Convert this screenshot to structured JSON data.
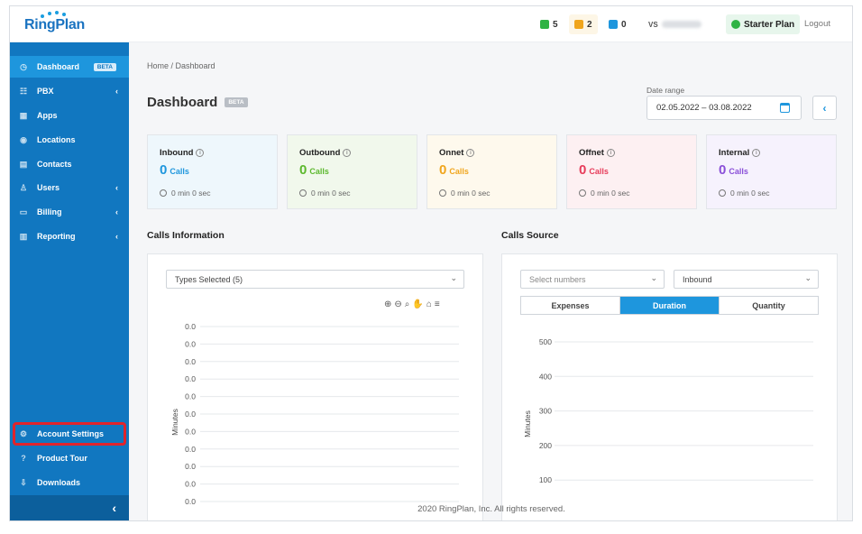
{
  "header": {
    "logo": "RingPlan",
    "counters": [
      {
        "icon": "phone-icon",
        "value": "5",
        "color": "#2fb344"
      },
      {
        "icon": "mail-icon",
        "value": "2",
        "color": "#f0a51c"
      },
      {
        "icon": "fax-icon",
        "value": "0",
        "color": "#1e96dd"
      }
    ],
    "user_initials": "VS",
    "plan_label": "Starter Plan",
    "logout_label": "Logout"
  },
  "sidebar": {
    "items": [
      {
        "label": "Dashboard",
        "icon": "dashboard-icon",
        "badge": "BETA",
        "active": true
      },
      {
        "label": "PBX",
        "icon": "pbx-icon",
        "arrow": "‹"
      },
      {
        "label": "Apps",
        "icon": "apps-icon"
      },
      {
        "label": "Locations",
        "icon": "location-icon"
      },
      {
        "label": "Contacts",
        "icon": "contacts-icon"
      },
      {
        "label": "Users",
        "icon": "users-icon",
        "arrow": "‹"
      },
      {
        "label": "Billing",
        "icon": "billing-icon",
        "arrow": "‹"
      },
      {
        "label": "Reporting",
        "icon": "reporting-icon",
        "arrow": "‹"
      }
    ],
    "bottom_items": [
      {
        "label": "Account Settings",
        "icon": "gear-icon"
      },
      {
        "label": "Product Tour",
        "icon": "help-icon"
      },
      {
        "label": "Downloads",
        "icon": "download-icon"
      }
    ],
    "collapse_glyph": "‹"
  },
  "main": {
    "breadcrumb": "Home / Dashboard",
    "title": "Dashboard",
    "title_badge": "BETA",
    "date_range_label": "Date range",
    "date_range_value": "02.05.2022 – 03.08.2022",
    "prev_glyph": "‹",
    "stats": [
      {
        "name": "Inbound",
        "value": "0",
        "unit": "Calls",
        "duration": "0 min 0 sec",
        "color": "#1e96dd",
        "bg": "#eef7fc"
      },
      {
        "name": "Outbound",
        "value": "0",
        "unit": "Calls",
        "duration": "0 min 0 sec",
        "color": "#5cb82d",
        "bg": "#f1f8ec"
      },
      {
        "name": "Onnet",
        "value": "0",
        "unit": "Calls",
        "duration": "0 min 0 sec",
        "color": "#f0a51c",
        "bg": "#fef9ed"
      },
      {
        "name": "Offnet",
        "value": "0",
        "unit": "Calls",
        "duration": "0 min 0 sec",
        "color": "#e73c5a",
        "bg": "#fdf0f2"
      },
      {
        "name": "Internal",
        "value": "0",
        "unit": "Calls",
        "duration": "0 min 0 sec",
        "color": "#8a4fd8",
        "bg": "#f6f2fd"
      }
    ],
    "calls_info": {
      "title": "Calls Information",
      "types_select": "Types Selected (5)"
    },
    "calls_source": {
      "title": "Calls Source",
      "numbers_select": "Select numbers",
      "direction_select": "Inbound",
      "tabs": [
        {
          "label": "Expenses",
          "active": false
        },
        {
          "label": "Duration",
          "active": true
        },
        {
          "label": "Quantity",
          "active": false
        }
      ]
    },
    "footer": "2020 RingPlan, Inc. All rights reserved."
  },
  "chart_data": [
    {
      "type": "line",
      "ylabel": "Minutes",
      "y_ticks": [
        "0.0",
        "0.0",
        "0.0",
        "0.0",
        "0.0",
        "0.0",
        "0.0",
        "0.0",
        "0.0",
        "0.0",
        "0.0"
      ],
      "series": [],
      "grid": true
    },
    {
      "type": "bar",
      "ylabel": "Minutes",
      "y_ticks": [
        "500",
        "400",
        "300",
        "200",
        "100"
      ],
      "ylim": [
        0,
        500
      ],
      "series": [],
      "grid": true
    }
  ]
}
